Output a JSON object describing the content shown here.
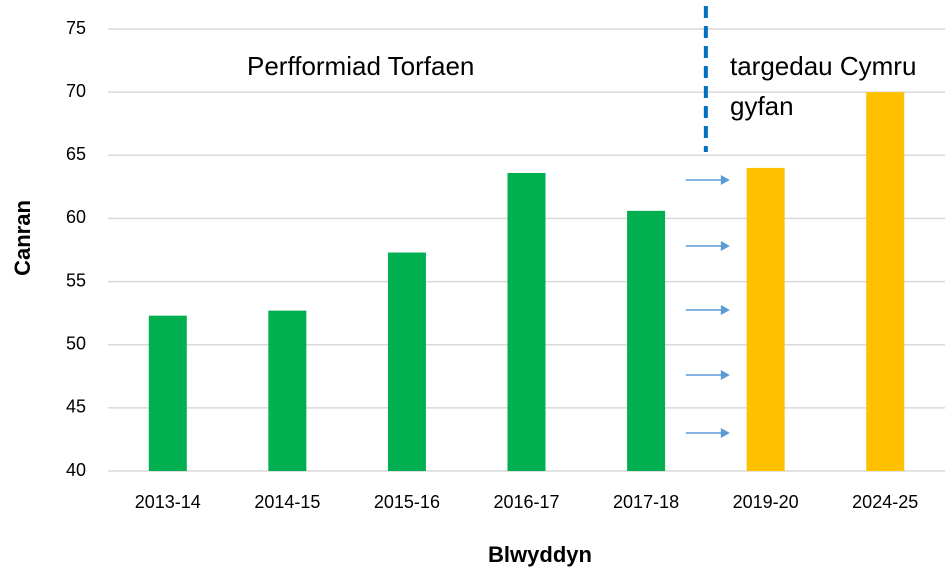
{
  "chart_data": {
    "type": "bar",
    "categories": [
      "2013-14",
      "2014-15",
      "2015-16",
      "2016-17",
      "2017-18",
      "2019-20",
      "2024-25"
    ],
    "values": [
      52.3,
      52.7,
      57.3,
      63.6,
      60.6,
      64,
      70
    ],
    "colors": [
      "#00b050",
      "#00b050",
      "#00b050",
      "#00b050",
      "#00b050",
      "#ffc000",
      "#ffc000"
    ],
    "ylim": [
      40,
      75
    ],
    "yticks": [
      40,
      45,
      50,
      55,
      60,
      65,
      70,
      75
    ],
    "grid": true,
    "y_label": "Canran",
    "x_label": "Blwyddyn",
    "annotations": [
      "Perfformiad Torfaen",
      "targedau Cymru gyfan"
    ]
  }
}
